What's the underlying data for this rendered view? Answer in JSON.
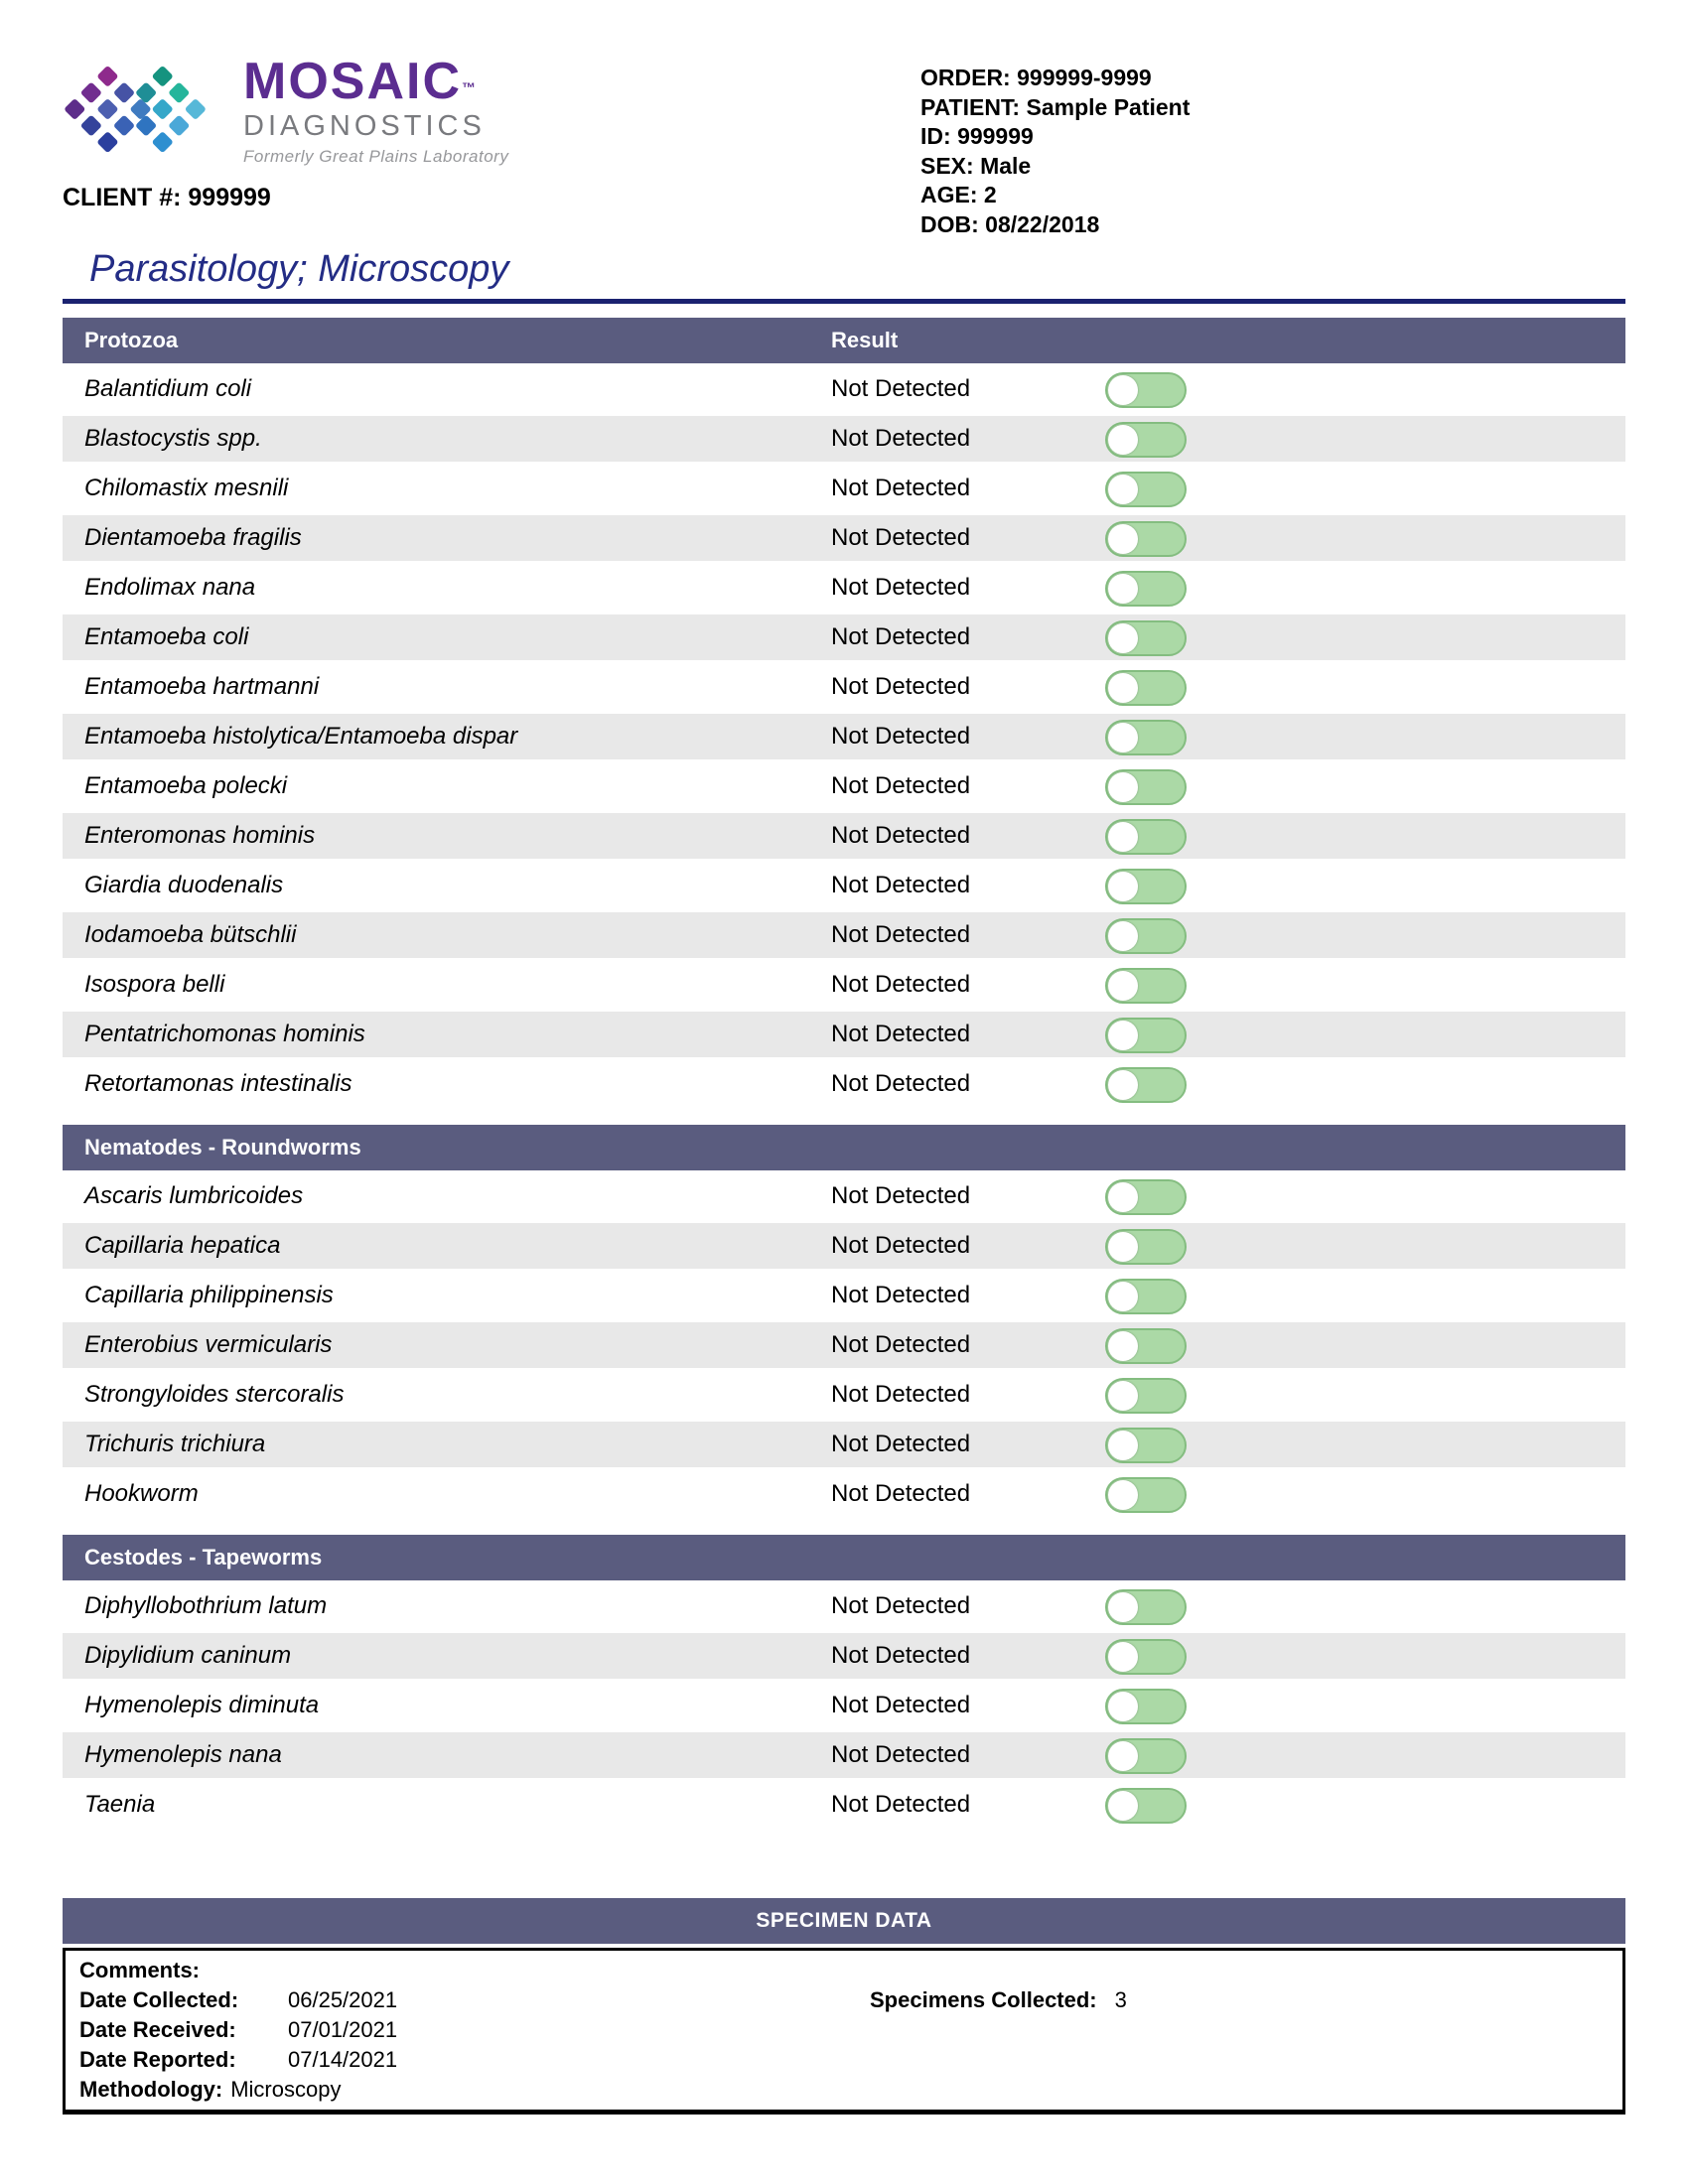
{
  "colors": {
    "navy": "#232c85",
    "navy_dark": "#1b2270",
    "section_bar": "#5a5c7f",
    "row_gray": "#e8e8e8",
    "toggle_green": "#abd9a6",
    "toggle_border": "#84bd80",
    "brand_purple": "#5b2d90",
    "brand_gray": "#797a7e"
  },
  "logo": {
    "brand": "MOSAIC",
    "tm": "™",
    "sub": "DIAGNOSTICS",
    "tagline": "Formerly Great Plains Laboratory"
  },
  "client": {
    "label": "CLIENT #:",
    "value": "999999"
  },
  "patient_info": [
    {
      "label": "ORDER:",
      "value": "999999-9999"
    },
    {
      "label": "PATIENT:",
      "value": "Sample Patient"
    },
    {
      "label": "ID:",
      "value": "999999"
    },
    {
      "label": "SEX:",
      "value": "Male"
    },
    {
      "label": "AGE:",
      "value": "2"
    },
    {
      "label": "DOB:",
      "value": "08/22/2018"
    }
  ],
  "title": "Parasitology; Microscopy",
  "result_column_label": "Result",
  "sections": [
    {
      "name": "Protozoa",
      "show_result_header": true,
      "rows": [
        {
          "organism": "Balantidium coli",
          "result": "Not Detected"
        },
        {
          "organism": "Blastocystis spp.",
          "result": "Not Detected"
        },
        {
          "organism": "Chilomastix mesnili",
          "result": "Not Detected"
        },
        {
          "organism": "Dientamoeba fragilis",
          "result": "Not Detected"
        },
        {
          "organism": "Endolimax nana",
          "result": "Not Detected"
        },
        {
          "organism": "Entamoeba coli",
          "result": "Not Detected"
        },
        {
          "organism": "Entamoeba hartmanni",
          "result": "Not Detected"
        },
        {
          "organism": "Entamoeba histolytica/Entamoeba dispar",
          "result": "Not Detected"
        },
        {
          "organism": "Entamoeba polecki",
          "result": "Not Detected"
        },
        {
          "organism": "Enteromonas hominis",
          "result": "Not Detected"
        },
        {
          "organism": "Giardia duodenalis",
          "result": "Not Detected"
        },
        {
          "organism": "Iodamoeba bütschlii",
          "result": "Not Detected"
        },
        {
          "organism": "Isospora belli",
          "result": "Not Detected"
        },
        {
          "organism": "Pentatrichomonas hominis",
          "result": "Not Detected"
        },
        {
          "organism": "Retortamonas intestinalis",
          "result": "Not Detected"
        }
      ]
    },
    {
      "name": "Nematodes - Roundworms",
      "show_result_header": false,
      "rows": [
        {
          "organism": "Ascaris lumbricoides",
          "result": "Not Detected"
        },
        {
          "organism": "Capillaria hepatica",
          "result": "Not Detected"
        },
        {
          "organism": "Capillaria philippinensis",
          "result": "Not Detected"
        },
        {
          "organism": "Enterobius vermicularis",
          "result": "Not Detected"
        },
        {
          "organism": "Strongyloides stercoralis",
          "result": "Not Detected"
        },
        {
          "organism": "Trichuris trichiura",
          "result": "Not Detected"
        },
        {
          "organism": "Hookworm",
          "result": "Not Detected"
        }
      ]
    },
    {
      "name": "Cestodes - Tapeworms",
      "show_result_header": false,
      "rows": [
        {
          "organism": "Diphyllobothrium latum",
          "result": "Not Detected"
        },
        {
          "organism": "Dipylidium caninum",
          "result": "Not Detected"
        },
        {
          "organism": "Hymenolepis diminuta",
          "result": "Not Detected"
        },
        {
          "organism": "Hymenolepis nana",
          "result": "Not Detected"
        },
        {
          "organism": "Taenia",
          "result": "Not Detected"
        }
      ]
    }
  ],
  "specimen": {
    "header": "SPECIMEN DATA",
    "comments_label": "Comments:",
    "fields": [
      {
        "label": "Date Collected:",
        "value": "06/25/2021"
      },
      {
        "label": "Date Received:",
        "value": "07/01/2021"
      },
      {
        "label": "Date Reported:",
        "value": "07/14/2021"
      },
      {
        "label": "Methodology:",
        "value": "Microscopy",
        "inline": true
      }
    ],
    "right": {
      "label": "Specimens Collected:",
      "value": "3"
    }
  }
}
